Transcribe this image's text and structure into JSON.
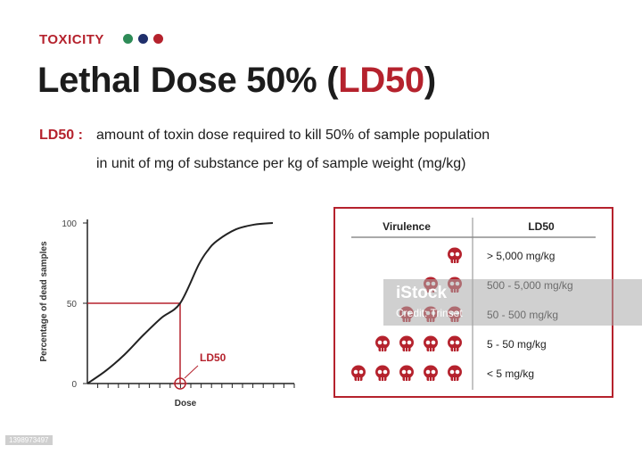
{
  "header": {
    "tag": "TOXICITY",
    "dot_colors": [
      "#2e8b57",
      "#1f2f6b",
      "#b5222d"
    ],
    "title_main": "Lethal Dose 50% (",
    "title_highlight": "LD50",
    "title_end": ")"
  },
  "definition": {
    "term": "LD50 :",
    "line1": "amount of toxin dose required to kill 50% of sample population",
    "line2": "in unit of mg of substance per kg of sample weight (mg/kg)"
  },
  "chart_data": {
    "type": "line",
    "ylabel": "Percentage of dead samples",
    "xlabel": "Dose",
    "y_ticks": [
      "0",
      "50",
      "100"
    ],
    "ylim": [
      0,
      100
    ],
    "ld50_label": "LD50",
    "ld50_x": 50,
    "ld50_y": 50,
    "curve": {
      "x": [
        0,
        10,
        20,
        30,
        40,
        50,
        60,
        65,
        70,
        80,
        90,
        100
      ],
      "y": [
        0,
        8,
        18,
        30,
        41,
        50,
        74,
        83,
        89,
        96,
        99,
        100
      ]
    },
    "line_color": "#222222",
    "marker_color": "#b5222d"
  },
  "table": {
    "headers": [
      "Virulence",
      "LD50"
    ],
    "rows": [
      {
        "skulls": 1,
        "value": "> 5,000 mg/kg"
      },
      {
        "skulls": 2,
        "value": "500 - 5,000 mg/kg"
      },
      {
        "skulls": 3,
        "value": "50 - 500 mg/kg"
      },
      {
        "skulls": 4,
        "value": "5 - 50 mg/kg"
      },
      {
        "skulls": 5,
        "value": "< 5 mg/kg"
      }
    ],
    "skull_color": "#b5222d",
    "border_color": "#b5222d"
  },
  "watermark": {
    "logo": "iStock",
    "credit": "Credit: Trinset",
    "image_id": "1398973497"
  }
}
